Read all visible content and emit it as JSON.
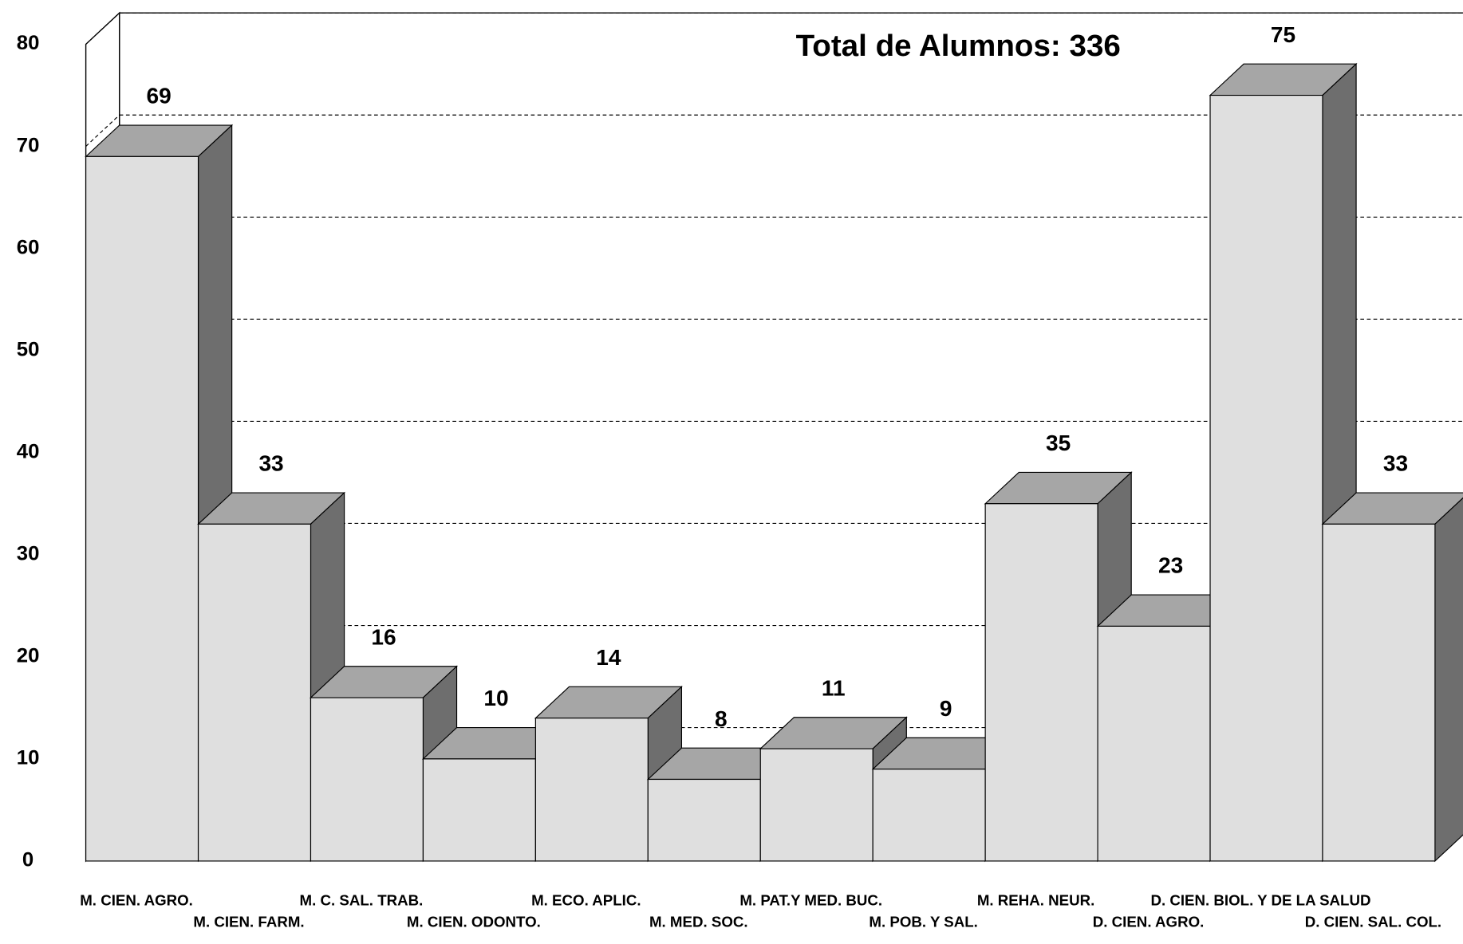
{
  "chart_data": {
    "type": "bar3d",
    "title": "Total de Alumnos: 336",
    "categories": [
      "M. CIEN. AGRO.",
      "M. CIEN. FARM.",
      "M. C. SAL. TRAB.",
      "M. CIEN. ODONTO.",
      "M. ECO. APLIC.",
      "M. MED. SOC.",
      "M. PAT.Y MED. BUC.",
      "M. POB. Y SAL.",
      "M. REHA. NEUR.",
      "D. CIEN. AGRO.",
      "D. CIEN. BIOL. Y DE LA SALUD",
      "D. CIEN. SAL. COL."
    ],
    "values": [
      69,
      33,
      16,
      10,
      14,
      8,
      11,
      9,
      35,
      23,
      75,
      33
    ],
    "colors": {
      "front": "#dfdfdf",
      "top": "#a6a6a6",
      "side": "#6e6e6e"
    },
    "ylim": [
      0,
      80
    ],
    "yticks": [
      0,
      10,
      20,
      30,
      40,
      50,
      60,
      70,
      80
    ],
    "grid": true
  }
}
